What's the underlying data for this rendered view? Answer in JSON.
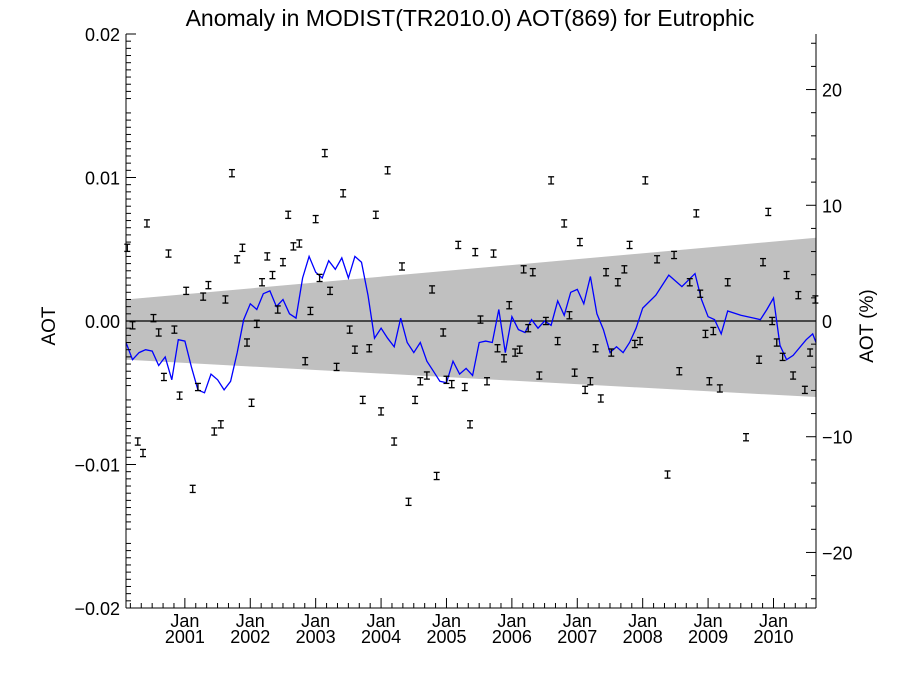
{
  "chart_data": {
    "type": "line",
    "title": "Anomaly in MODIST(TR2010.0) AOT(869) for Eutrophic",
    "ylabel": "AOT",
    "y2label": "AOT (%)",
    "xlim": [
      2000.1,
      2010.65
    ],
    "ylim": [
      -0.02,
      0.02
    ],
    "y2lim": [
      -24.8,
      24.8
    ],
    "y_ticks": [
      {
        "value": -0.02,
        "label": "−0.02"
      },
      {
        "value": -0.01,
        "label": "−0.01"
      },
      {
        "value": 0.0,
        "label": "0.00"
      },
      {
        "value": 0.01,
        "label": "0.01"
      },
      {
        "value": 0.02,
        "label": "0.02"
      }
    ],
    "y2_ticks": [
      {
        "value": -20,
        "label": "−20"
      },
      {
        "value": -10,
        "label": "−10"
      },
      {
        "value": 0,
        "label": "0"
      },
      {
        "value": 10,
        "label": "10"
      },
      {
        "value": 20,
        "label": "20"
      }
    ],
    "x_ticks": [
      {
        "value": 2001,
        "label1": "Jan",
        "label2": "2001"
      },
      {
        "value": 2002,
        "label1": "Jan",
        "label2": "2002"
      },
      {
        "value": 2003,
        "label1": "Jan",
        "label2": "2003"
      },
      {
        "value": 2004,
        "label1": "Jan",
        "label2": "2004"
      },
      {
        "value": 2005,
        "label1": "Jan",
        "label2": "2005"
      },
      {
        "value": 2006,
        "label1": "Jan",
        "label2": "2006"
      },
      {
        "value": 2007,
        "label1": "Jan",
        "label2": "2007"
      },
      {
        "value": 2008,
        "label1": "Jan",
        "label2": "2008"
      },
      {
        "value": 2009,
        "label1": "Jan",
        "label2": "2009"
      },
      {
        "value": 2010,
        "label1": "Jan",
        "label2": "2010"
      }
    ],
    "band": {
      "x": [
        2000.1,
        2010.65
      ],
      "upper": [
        0.0015,
        0.0058
      ],
      "lower": [
        -0.0027,
        -0.0053
      ],
      "color": "#c0c0c0"
    },
    "zero_line": 0.0,
    "series": [
      {
        "type": "line",
        "color": "#0000ff",
        "x": [
          2000.1,
          2000.2,
          2000.3,
          2000.4,
          2000.5,
          2000.6,
          2000.7,
          2000.8,
          2000.9,
          2001.0,
          2001.1,
          2001.2,
          2001.3,
          2001.4,
          2001.5,
          2001.6,
          2001.7,
          2001.8,
          2001.9,
          2002.0,
          2002.1,
          2002.2,
          2002.3,
          2002.4,
          2002.5,
          2002.6,
          2002.7,
          2002.8,
          2002.9,
          2003.0,
          2003.1,
          2003.2,
          2003.3,
          2003.4,
          2003.5,
          2003.6,
          2003.7,
          2003.8,
          2003.9,
          2004.0,
          2004.1,
          2004.2,
          2004.3,
          2004.4,
          2004.5,
          2004.6,
          2004.7,
          2004.8,
          2004.9,
          2005.0,
          2005.1,
          2005.2,
          2005.3,
          2005.4,
          2005.5,
          2005.6,
          2005.7,
          2005.8,
          2005.9,
          2006.0,
          2006.1,
          2006.2,
          2006.3,
          2006.4,
          2006.5,
          2006.6,
          2006.7,
          2006.8,
          2006.9,
          2007.0,
          2007.1,
          2007.2,
          2007.3,
          2007.4,
          2007.5,
          2007.6,
          2007.7,
          2007.8,
          2007.9,
          2008.0,
          2008.2,
          2008.4,
          2008.6,
          2008.8,
          2008.9,
          2009.0,
          2009.1,
          2009.2,
          2009.3,
          2009.5,
          2009.7,
          2009.8,
          2009.9,
          2010.0,
          2010.1,
          2010.2,
          2010.3,
          2010.5,
          2010.6,
          2010.65
        ],
        "y": [
          -0.0015,
          -0.0027,
          -0.0022,
          -0.002,
          -0.0021,
          -0.0031,
          -0.0025,
          -0.0041,
          -0.0013,
          -0.0014,
          -0.0032,
          -0.0048,
          -0.005,
          -0.0037,
          -0.0041,
          -0.0048,
          -0.0042,
          -0.0022,
          0.0001,
          0.0012,
          0.0008,
          0.0019,
          0.0021,
          0.001,
          0.0015,
          0.0005,
          0.0002,
          0.003,
          0.0045,
          0.0034,
          0.003,
          0.0042,
          0.0036,
          0.0044,
          0.003,
          0.0045,
          0.0041,
          0.0018,
          -0.0012,
          -0.0005,
          -0.0012,
          -0.0018,
          0.0002,
          -0.0015,
          -0.0022,
          -0.0015,
          -0.0028,
          -0.0035,
          -0.0042,
          -0.0043,
          -0.0028,
          -0.0037,
          -0.0033,
          -0.0038,
          -0.0015,
          -0.0014,
          -0.0015,
          0.0008,
          -0.0022,
          0.0003,
          -0.0006,
          -0.0008,
          0.0001,
          -0.0005,
          0.0,
          -0.0003,
          0.0014,
          0.0004,
          0.002,
          0.0022,
          0.0012,
          0.0031,
          0.0005,
          -0.0006,
          -0.0022,
          -0.0018,
          -0.0022,
          -0.0015,
          -0.0005,
          0.0009,
          0.0018,
          0.0032,
          0.0024,
          0.0033,
          0.0015,
          0.0003,
          0.0001,
          -0.0009,
          0.0007,
          0.0004,
          0.0002,
          0.0001,
          0.0008,
          0.0016,
          -0.0017,
          -0.0027,
          -0.0024,
          -0.0013,
          -0.0009,
          -0.0015
        ]
      },
      {
        "type": "errorbar",
        "color": "#000000",
        "yerr": 0.00025,
        "x": [
          2000.12,
          2000.2,
          2000.28,
          2000.36,
          2000.42,
          2000.52,
          2000.6,
          2000.68,
          2000.75,
          2000.84,
          2000.92,
          2001.02,
          2001.12,
          2001.2,
          2001.28,
          2001.36,
          2001.45,
          2001.55,
          2001.62,
          2001.72,
          2001.8,
          2001.88,
          2001.95,
          2002.02,
          2002.1,
          2002.18,
          2002.26,
          2002.34,
          2002.42,
          2002.5,
          2002.58,
          2002.66,
          2002.75,
          2002.84,
          2002.92,
          2003.0,
          2003.06,
          2003.14,
          2003.22,
          2003.32,
          2003.42,
          2003.52,
          2003.6,
          2003.72,
          2003.82,
          2003.92,
          2004.0,
          2004.1,
          2004.2,
          2004.32,
          2004.42,
          2004.52,
          2004.6,
          2004.7,
          2004.78,
          2004.85,
          2004.95,
          2005.0,
          2005.08,
          2005.18,
          2005.28,
          2005.36,
          2005.44,
          2005.52,
          2005.62,
          2005.72,
          2005.78,
          2005.88,
          2005.96,
          2006.05,
          2006.12,
          2006.18,
          2006.25,
          2006.32,
          2006.42,
          2006.52,
          2006.6,
          2006.7,
          2006.8,
          2006.88,
          2006.96,
          2007.04,
          2007.12,
          2007.2,
          2007.28,
          2007.36,
          2007.44,
          2007.52,
          2007.62,
          2007.72,
          2007.8,
          2007.88,
          2007.96,
          2008.04,
          2008.22,
          2008.38,
          2008.48,
          2008.56,
          2008.72,
          2008.82,
          2008.88,
          2008.96,
          2009.02,
          2009.08,
          2009.18,
          2009.3,
          2009.58,
          2009.78,
          2009.84,
          2009.92,
          2009.98,
          2010.05,
          2010.14,
          2010.2,
          2010.3,
          2010.38,
          2010.48,
          2010.56,
          2010.64
        ],
        "y": [
          0.0051,
          -0.0003,
          -0.0084,
          -0.0092,
          0.0068,
          0.0002,
          -0.0008,
          -0.0039,
          0.0047,
          -0.0006,
          -0.0052,
          0.0021,
          -0.0117,
          -0.0046,
          0.0017,
          0.0025,
          -0.0077,
          -0.0072,
          0.0015,
          0.0103,
          0.0043,
          0.0051,
          -0.0015,
          -0.0057,
          -0.0002,
          0.0027,
          0.0045,
          0.0032,
          0.0008,
          0.0041,
          0.0074,
          0.0052,
          0.0054,
          -0.0028,
          0.0007,
          0.0071,
          0.003,
          0.0117,
          0.0021,
          -0.0032,
          0.0089,
          -0.0006,
          -0.002,
          -0.0055,
          -0.0019,
          0.0074,
          -0.0063,
          0.0105,
          -0.0084,
          0.0038,
          -0.0126,
          -0.0055,
          -0.0042,
          -0.0038,
          0.0022,
          -0.0108,
          -0.0008,
          -0.0041,
          -0.0044,
          0.0053,
          -0.0046,
          -0.0072,
          0.0048,
          0.0001,
          -0.0042,
          0.0047,
          -0.0019,
          -0.0026,
          0.0011,
          -0.0022,
          -0.002,
          0.0036,
          -0.0005,
          0.0034,
          -0.0038,
          0.0,
          0.0098,
          -0.0014,
          0.0068,
          0.0004,
          -0.0036,
          0.0055,
          -0.0048,
          -0.0042,
          -0.0019,
          -0.0054,
          0.0034,
          -0.0022,
          0.0027,
          0.0036,
          0.0053,
          -0.0016,
          -0.0014,
          0.0098,
          0.0043,
          -0.0107,
          0.0046,
          -0.0035,
          0.0027,
          0.0075,
          0.0019,
          -0.0009,
          -0.0042,
          -0.0007,
          -0.0047,
          0.0027,
          -0.0081,
          -0.0027,
          0.0041,
          0.0076,
          0.0,
          -0.0015,
          -0.0025,
          0.0032,
          -0.0038,
          0.0018,
          -0.0048,
          -0.0022,
          0.0015
        ]
      }
    ]
  }
}
